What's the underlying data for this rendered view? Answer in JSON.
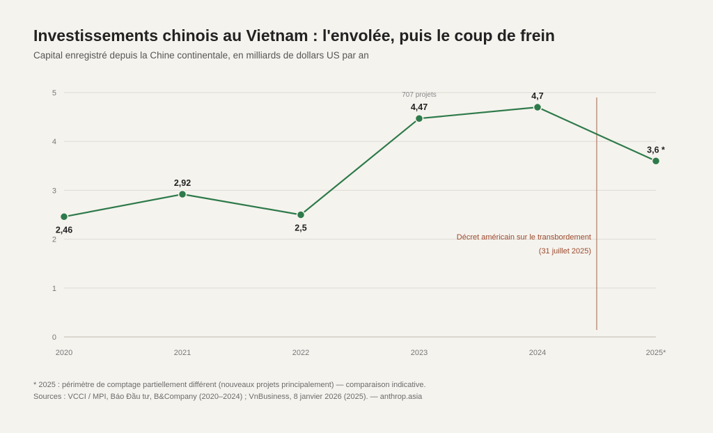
{
  "header": {
    "title": "Investissements chinois au Vietnam : l'envolée, puis le coup de frein",
    "subtitle": "Capital enregistré depuis la Chine continentale, en milliards de dollars US par an"
  },
  "chart_data": {
    "type": "line",
    "categories": [
      "2020",
      "2021",
      "2022",
      "2023",
      "2024",
      "2025*"
    ],
    "series": [
      {
        "values": [
          2.46,
          2.92,
          2.5,
          4.47,
          4.7,
          3.6
        ],
        "color": "#2e7a4a"
      }
    ],
    "data_labels": [
      "2,46",
      "2,92",
      "2,5",
      "4,47",
      "4,7",
      "3,6 *"
    ],
    "yticks": [
      0,
      1,
      2,
      3,
      4,
      5
    ],
    "ylim": [
      0,
      5
    ],
    "grid": true,
    "annotations": {
      "projects_note": {
        "text": "707 projets",
        "category": "2023"
      },
      "decree": {
        "line1": "Décret américain sur le transbordement",
        "line2": "(31 juillet 2025)",
        "date_label": "31 juillet 2025",
        "color": "#b07a62",
        "text_color": "#9b4a2d"
      }
    }
  },
  "footer": {
    "note": "* 2025 : périmètre de comptage partiellement différent (nouveaux projets principalement) — comparaison indicative.",
    "sources": "Sources : VCCI / MPI, Báo Đầu tư, B&Company (2020–2024) ; VnBusiness, 8 janvier 2026 (2025). — anthrop.asia"
  },
  "colors": {
    "background": "#f5f3ee",
    "line": "#2e7a4a",
    "grid": "#dedbd4"
  }
}
